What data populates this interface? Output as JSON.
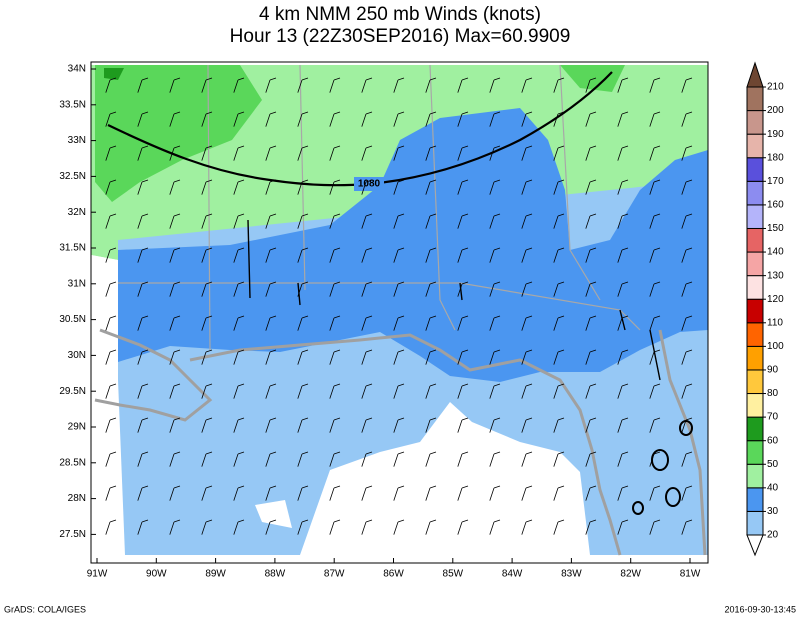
{
  "title": [
    "4 km NMM 250 mb Winds (knots)",
    "Hour 13 (22Z30SEP2016) Max=60.9909"
  ],
  "lat_labels": [
    "34N",
    "33.5N",
    "33N",
    "32.5N",
    "32N",
    "31.5N",
    "31N",
    "30.5N",
    "30N",
    "29.5N",
    "29N",
    "28.5N",
    "28N",
    "27.5N"
  ],
  "lon_labels": [
    "91W",
    "90W",
    "89W",
    "88W",
    "87W",
    "86W",
    "85W",
    "84W",
    "83W",
    "82W",
    "81W"
  ],
  "contour_label": "1080",
  "colorbar": {
    "levels": [
      20,
      30,
      40,
      50,
      60,
      70,
      80,
      90,
      100,
      110,
      120,
      130,
      140,
      150,
      160,
      170,
      180,
      190,
      200,
      210
    ],
    "colors": [
      "#ffffff",
      "#96c8f5",
      "#4b96f0",
      "#a0f0a0",
      "#5ad75a",
      "#1e9b1e",
      "#fff0a0",
      "#ffc83c",
      "#ffa000",
      "#ff6400",
      "#c80000",
      "#fde2e2",
      "#f5a5a5",
      "#e66464",
      "#b4b4fa",
      "#8c8cf0",
      "#5a50dc",
      "#e6b4aa",
      "#c8968c",
      "#a0735f",
      "#6e4632"
    ]
  },
  "footer_left": "GrADS: COLA/IGES",
  "footer_right": "2016-09-30-13:45"
}
